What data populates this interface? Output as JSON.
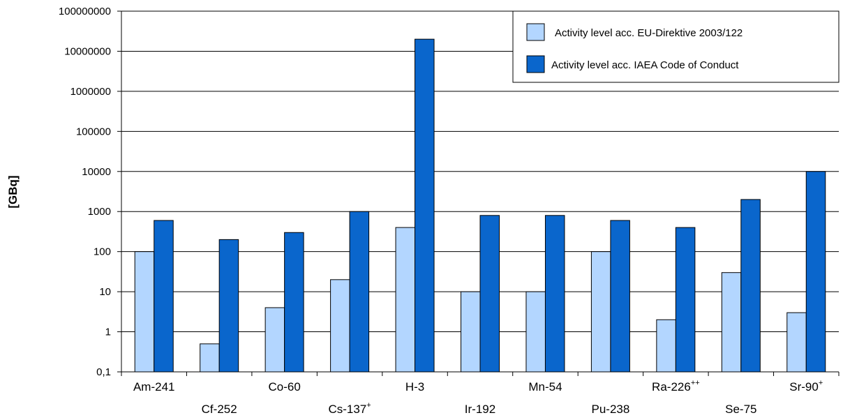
{
  "chart_data": {
    "type": "bar",
    "scale": "log",
    "ylabel": "[GBq]",
    "ylim": [
      0.1,
      100000000
    ],
    "yticks": [
      "0,1",
      "1",
      "10",
      "100",
      "1000",
      "10000",
      "100000",
      "1000000",
      "10000000",
      "100000000"
    ],
    "grid": "horizontal",
    "legend_position": "top-right",
    "categories": [
      {
        "base": "Am-241",
        "sup": ""
      },
      {
        "base": "Cf-252",
        "sup": ""
      },
      {
        "base": "Co-60",
        "sup": ""
      },
      {
        "base": "Cs-137",
        "sup": "+"
      },
      {
        "base": "H-3",
        "sup": ""
      },
      {
        "base": "Ir-192",
        "sup": ""
      },
      {
        "base": "Mn-54",
        "sup": ""
      },
      {
        "base": "Pu-238",
        "sup": ""
      },
      {
        "base": "Ra-226",
        "sup": "++"
      },
      {
        "base": "Se-75",
        "sup": ""
      },
      {
        "base": "Sr-90",
        "sup": "+"
      }
    ],
    "series": [
      {
        "name": "Activity level acc. EU-Direktive 2003/122",
        "color": "#b3d6ff",
        "values": [
          100,
          0.5,
          4,
          20,
          400,
          10,
          10,
          100,
          2,
          30,
          3
        ]
      },
      {
        "name": "Activity level acc. IAEA Code of Conduct",
        "color": "#0a66cc",
        "values": [
          600,
          200,
          300,
          1000,
          20000000,
          800,
          800,
          600,
          400,
          2000,
          10000
        ]
      }
    ]
  }
}
